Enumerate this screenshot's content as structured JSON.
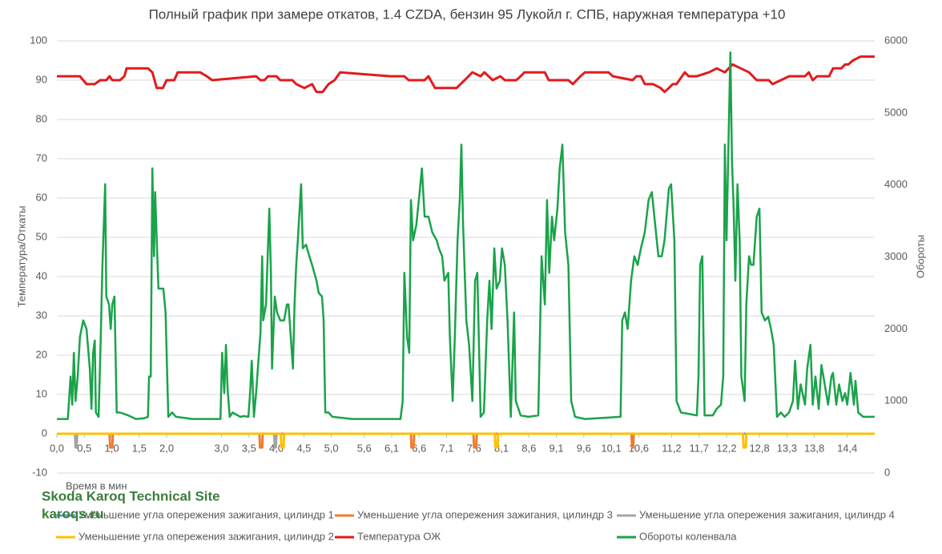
{
  "chart_data": {
    "type": "line",
    "title": "Полный график при замере откатов, 1.4 CZDA, бензин 95 Лукойл г. СПБ, наружная температура +10",
    "x_label": "Время в мин",
    "y_label": "Температура/Откаты",
    "y2_label": "Обороты",
    "annotations": [
      "Skoda Karoq Technical Site",
      "karoqs.ru"
    ],
    "xlim": [
      0,
      14.9
    ],
    "xticks": [
      {
        "value": 0,
        "label": "0,0"
      },
      {
        "value": 0.5,
        "label": "0,5"
      },
      {
        "value": 1.0,
        "label": "1,0"
      },
      {
        "value": 1.5,
        "label": "1,5"
      },
      {
        "value": 2.0,
        "label": "2,0"
      },
      {
        "value": 3.0,
        "label": "3,0"
      },
      {
        "value": 3.5,
        "label": "3,5"
      },
      {
        "value": 4.0,
        "label": "4,0"
      },
      {
        "value": 4.5,
        "label": "4,5"
      },
      {
        "value": 5.0,
        "label": "5,0"
      },
      {
        "value": 5.6,
        "label": "5,6"
      },
      {
        "value": 6.1,
        "label": "6,1"
      },
      {
        "value": 6.6,
        "label": "6,6"
      },
      {
        "value": 7.1,
        "label": "7,1"
      },
      {
        "value": 7.6,
        "label": "7,6"
      },
      {
        "value": 8.1,
        "label": "8,1"
      },
      {
        "value": 8.6,
        "label": "8,6"
      },
      {
        "value": 9.1,
        "label": "9,1"
      },
      {
        "value": 9.6,
        "label": "9,6"
      },
      {
        "value": 10.1,
        "label": "10,1"
      },
      {
        "value": 10.6,
        "label": "10,6"
      },
      {
        "value": 11.2,
        "label": "11,2"
      },
      {
        "value": 11.7,
        "label": "11,7"
      },
      {
        "value": 12.2,
        "label": "12,2"
      },
      {
        "value": 12.8,
        "label": "12,8"
      },
      {
        "value": 13.3,
        "label": "13,3"
      },
      {
        "value": 13.8,
        "label": "13,8"
      },
      {
        "value": 14.4,
        "label": "14,4"
      }
    ],
    "ylim": [
      -10,
      100
    ],
    "yticks": [
      -10,
      0,
      10,
      20,
      30,
      40,
      50,
      60,
      70,
      80,
      90,
      100
    ],
    "y2lim": [
      0,
      6000
    ],
    "y2ticks": [
      0,
      1000,
      2000,
      3000,
      4000,
      5000,
      6000
    ],
    "grid": true,
    "legend": "bottom",
    "series": [
      {
        "name": "Уменьшение угла опережения зажигания, цилиндр 1",
        "color": "#5b9bd5",
        "x": [
          0,
          14.9
        ],
        "values": [
          0,
          0
        ]
      },
      {
        "name": "Уменьшение угла опережения зажигания, цилиндр 3",
        "color": "#ed7d31",
        "x": [
          0.96,
          0.97,
          1.01,
          1.02,
          3.69,
          3.7,
          3.74,
          3.75,
          6.45,
          6.46,
          6.5,
          6.51,
          7.59,
          7.6,
          7.64,
          7.65,
          10.47,
          10.48,
          10.5,
          10.51
        ],
        "values": [
          0,
          -3.5,
          -3.5,
          0,
          0,
          -3.5,
          -3.5,
          0,
          0,
          -3.5,
          -3.5,
          0,
          0,
          -3.5,
          -3.5,
          0,
          0,
          -3.5,
          -3.5,
          0
        ]
      },
      {
        "name": "Уменьшение угла опережения зажигания, цилиндр 4",
        "color": "#a5a5a5",
        "x": [
          0.33,
          0.34,
          0.36,
          0.37,
          3.96,
          3.97,
          3.99,
          4.0
        ],
        "values": [
          0,
          -3.5,
          -3.5,
          0,
          0,
          -3.5,
          -3.5,
          0
        ]
      },
      {
        "name": "Уменьшение угла опережения зажигания, цилиндр 2",
        "color": "#ffc000",
        "x": [
          0,
          4.08,
          4.09,
          4.13,
          4.14,
          7.98,
          7.99,
          8.03,
          8.04,
          12.5,
          12.51,
          12.55,
          12.56,
          14.9
        ],
        "values": [
          0,
          0,
          -3.5,
          -3.5,
          0,
          0,
          -3.5,
          -3.5,
          0,
          0,
          -3.5,
          -3.5,
          0,
          0
        ]
      },
      {
        "name": "Температура ОЖ",
        "color": "#e31a1c",
        "x": [
          0,
          0.42,
          0.54,
          0.69,
          0.79,
          0.9,
          0.96,
          1.01,
          1.15,
          1.23,
          1.27,
          1.66,
          1.74,
          1.82,
          1.93,
          2.0,
          2.14,
          2.2,
          2.61,
          2.73,
          2.83,
          3.63,
          3.71,
          3.78,
          3.85,
          4.0,
          4.07,
          4.29,
          4.36,
          4.51,
          4.65,
          4.73,
          4.84,
          4.95,
          5.06,
          5.16,
          6.08,
          6.33,
          6.41,
          6.7,
          6.77,
          6.89,
          7.28,
          7.43,
          7.57,
          7.72,
          7.79,
          7.94,
          8.08,
          8.16,
          8.37,
          8.45,
          8.52,
          8.89,
          8.96,
          9.32,
          9.4,
          9.54,
          9.62,
          10.05,
          10.13,
          10.49,
          10.56,
          10.64,
          10.71,
          10.86,
          11.0,
          11.07,
          11.15,
          11.22,
          11.29,
          11.44,
          11.51,
          11.66,
          11.88,
          12.02,
          12.17,
          12.31,
          12.46,
          12.61,
          12.75,
          12.97,
          13.04,
          13.19,
          13.34,
          13.63,
          13.7,
          13.77,
          13.85,
          14.07,
          14.14,
          14.29,
          14.36,
          14.42,
          14.5,
          14.64,
          14.9
        ],
        "values": [
          91,
          91,
          89,
          89,
          90,
          90,
          91,
          90,
          90,
          91,
          93,
          93,
          92,
          88,
          88,
          90,
          90,
          92,
          92,
          91,
          90,
          91,
          90,
          90,
          91,
          91,
          90,
          90,
          89,
          88,
          89,
          87,
          87,
          89,
          90,
          92,
          91,
          91,
          90,
          90,
          91,
          88,
          88,
          90,
          92,
          91,
          92,
          90,
          91,
          90,
          90,
          91,
          92,
          92,
          90,
          90,
          89,
          91,
          92,
          92,
          91,
          90,
          91,
          91,
          89,
          89,
          88,
          87,
          88,
          89,
          89,
          92,
          91,
          91,
          92,
          93,
          92,
          94,
          93,
          92,
          90,
          90,
          89,
          90,
          91,
          91,
          92,
          90,
          91,
          91,
          93,
          93,
          94,
          94,
          95,
          96,
          96
        ]
      },
      {
        "name": "Обороты коленвала",
        "color": "#1aa34a",
        "axis": "y2",
        "x": [
          0,
          0.2,
          0.25,
          0.28,
          0.31,
          0.34,
          0.38,
          0.42,
          0.48,
          0.54,
          0.6,
          0.63,
          0.66,
          0.69,
          0.71,
          0.76,
          0.8,
          0.83,
          0.88,
          0.9,
          0.95,
          0.98,
          1.01,
          1.05,
          1.09,
          1.15,
          1.3,
          1.44,
          1.59,
          1.66,
          1.68,
          1.71,
          1.74,
          1.77,
          1.79,
          1.82,
          1.85,
          1.88,
          1.94,
          1.98,
          2.03,
          2.1,
          2.17,
          2.47,
          2.98,
          3.01,
          3.05,
          3.08,
          3.11,
          3.15,
          3.2,
          3.34,
          3.41,
          3.49,
          3.52,
          3.55,
          3.59,
          3.63,
          3.71,
          3.74,
          3.76,
          3.81,
          3.87,
          3.9,
          3.92,
          3.97,
          4.01,
          4.07,
          4.14,
          4.19,
          4.22,
          4.3,
          4.33,
          4.36,
          4.39,
          4.45,
          4.48,
          4.54,
          4.6,
          4.65,
          4.73,
          4.77,
          4.83,
          4.86,
          4.89,
          4.95,
          5.02,
          5.38,
          6.26,
          6.3,
          6.33,
          6.38,
          6.42,
          6.45,
          6.49,
          6.55,
          6.61,
          6.65,
          6.7,
          6.77,
          6.84,
          6.92,
          6.96,
          7.02,
          7.06,
          7.13,
          7.16,
          7.21,
          7.25,
          7.3,
          7.34,
          7.37,
          7.4,
          7.46,
          7.51,
          7.57,
          7.62,
          7.66,
          7.72,
          7.78,
          7.84,
          7.88,
          7.92,
          7.97,
          8.01,
          8.07,
          8.11,
          8.16,
          8.21,
          8.27,
          8.33,
          8.36,
          8.45,
          8.59,
          8.77,
          8.83,
          8.89,
          8.93,
          8.97,
          9.02,
          9.06,
          9.12,
          9.16,
          9.21,
          9.26,
          9.32,
          9.37,
          9.44,
          9.62,
          10.27,
          10.3,
          10.35,
          10.4,
          10.46,
          10.52,
          10.58,
          10.64,
          10.71,
          10.78,
          10.84,
          10.9,
          10.96,
          11.02,
          11.07,
          11.15,
          11.19,
          11.25,
          11.29,
          11.37,
          11.66,
          11.69,
          11.72,
          11.76,
          11.8,
          11.95,
          12.02,
          12.1,
          12.14,
          12.17,
          12.2,
          12.23,
          12.27,
          12.3,
          12.33,
          12.36,
          12.4,
          12.44,
          12.47,
          12.53,
          12.56,
          12.61,
          12.65,
          12.69,
          12.75,
          12.8,
          12.84,
          12.9,
          12.96,
          13.01,
          13.06,
          13.12,
          13.19,
          13.26,
          13.34,
          13.41,
          13.45,
          13.5,
          13.55,
          13.63,
          13.67,
          13.73,
          13.77,
          13.82,
          13.88,
          13.93,
          13.99,
          14.05,
          14.11,
          14.14,
          14.2,
          14.25,
          14.31,
          14.36,
          14.4,
          14.46,
          14.52,
          14.55,
          14.6,
          14.69,
          14.9
        ],
        "values": [
          750,
          750,
          1340,
          950,
          1670,
          1000,
          1340,
          1890,
          2120,
          2000,
          1450,
          890,
          1670,
          1840,
          840,
          780,
          1890,
          2890,
          4010,
          2450,
          2340,
          2000,
          2340,
          2450,
          840,
          840,
          800,
          750,
          760,
          780,
          1340,
          1340,
          4230,
          3010,
          3900,
          3230,
          2560,
          2560,
          2560,
          2230,
          780,
          840,
          780,
          750,
          750,
          1670,
          1110,
          1780,
          1170,
          780,
          840,
          780,
          790,
          780,
          1110,
          1560,
          780,
          1110,
          1950,
          3010,
          2120,
          2340,
          3670,
          2780,
          1450,
          2450,
          2230,
          2120,
          2120,
          2340,
          2340,
          1450,
          2340,
          2890,
          3230,
          4010,
          3120,
          3170,
          3010,
          2890,
          2670,
          2500,
          2450,
          2120,
          840,
          840,
          780,
          750,
          750,
          1000,
          2780,
          1890,
          1670,
          3790,
          3230,
          3450,
          3900,
          4230,
          3560,
          3560,
          3340,
          3230,
          3120,
          3010,
          2670,
          2780,
          1890,
          1000,
          1890,
          3230,
          3790,
          4560,
          3450,
          2120,
          1780,
          1000,
          2670,
          2780,
          780,
          840,
          2120,
          2670,
          2000,
          3120,
          2560,
          2670,
          3120,
          2890,
          2120,
          780,
          2230,
          1000,
          800,
          780,
          800,
          3010,
          2340,
          3790,
          2780,
          3560,
          3230,
          3670,
          4230,
          4560,
          3340,
          2890,
          1000,
          780,
          750,
          780,
          2120,
          2230,
          2000,
          2670,
          3010,
          2890,
          3120,
          3340,
          3790,
          3900,
          3450,
          3010,
          3010,
          3230,
          3950,
          4010,
          3230,
          1000,
          840,
          800,
          1340,
          2890,
          3010,
          800,
          800,
          890,
          950,
          1340,
          4560,
          3230,
          4340,
          5840,
          4340,
          3670,
          2670,
          4010,
          3230,
          1340,
          1000,
          2340,
          3010,
          2890,
          2890,
          3560,
          3670,
          2230,
          2120,
          2170,
          2000,
          1780,
          780,
          840,
          780,
          840,
          1000,
          1560,
          890,
          1230,
          950,
          1450,
          1780,
          950,
          1340,
          890,
          1500,
          1230,
          950,
          1340,
          1390,
          950,
          1230,
          1000,
          1110,
          950,
          1390,
          950,
          1280,
          840,
          780,
          780
        ]
      }
    ]
  }
}
